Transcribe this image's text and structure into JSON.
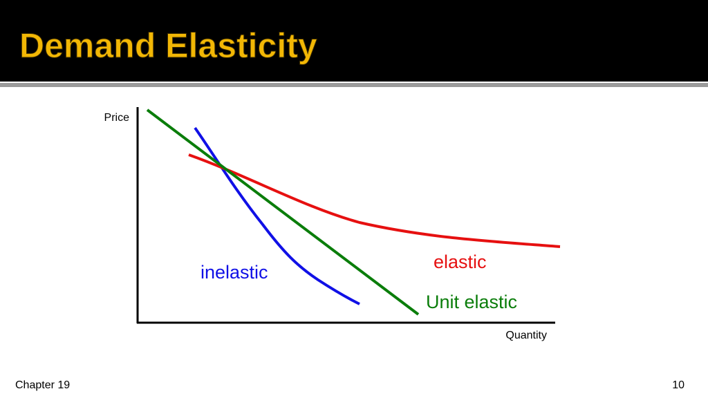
{
  "header": {
    "title": "Demand Elasticity"
  },
  "diagram": {
    "y_axis_label": "Price",
    "x_axis_label": "Quantity",
    "curves": [
      {
        "label": "inelastic"
      },
      {
        "label": "elastic"
      },
      {
        "label": "Unit elastic"
      }
    ]
  },
  "footer": {
    "chapter": "Chapter 19",
    "page_number": "10"
  }
}
